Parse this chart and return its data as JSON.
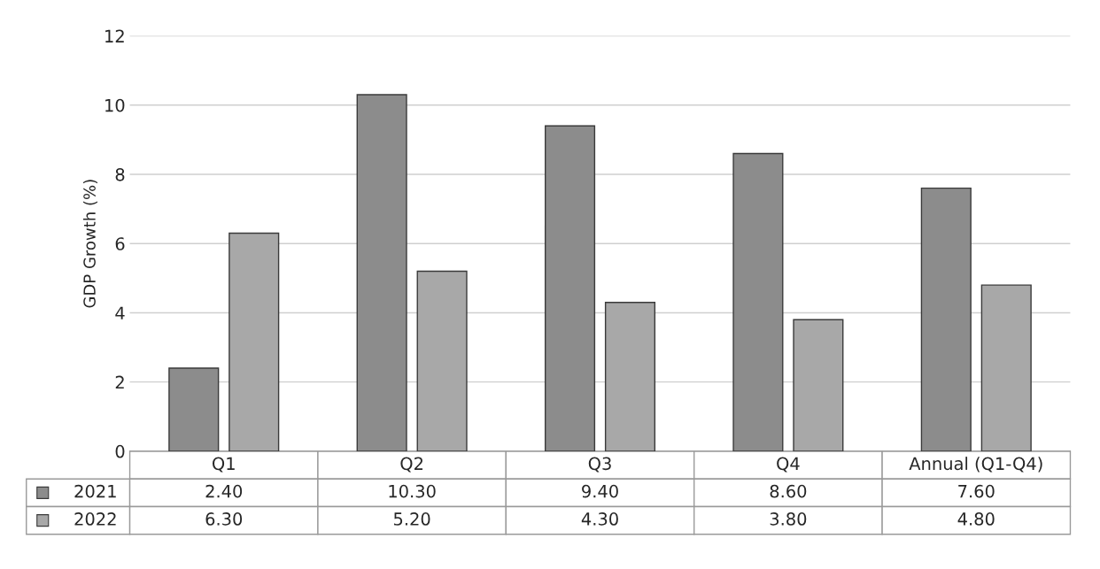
{
  "chart_data": {
    "type": "bar",
    "ylabel": "GDP Growth (%)",
    "categories": [
      "Q1",
      "Q2",
      "Q3",
      "Q4",
      "Annual (Q1-Q4)"
    ],
    "series": [
      {
        "name": "2021",
        "color": "#8c8c8c",
        "values": [
          2.4,
          10.3,
          9.4,
          8.6,
          7.6
        ],
        "value_labels": [
          "2.40",
          "10.30",
          "9.40",
          "8.60",
          "7.60"
        ]
      },
      {
        "name": "2022",
        "color": "#a8a8a8",
        "values": [
          6.3,
          5.2,
          4.3,
          3.8,
          4.8
        ],
        "value_labels": [
          "6.30",
          "5.20",
          "4.30",
          "3.80",
          "4.80"
        ]
      }
    ],
    "ylim": [
      0,
      12
    ],
    "yticks": [
      0,
      2,
      4,
      6,
      8,
      10,
      12
    ],
    "grid": "y",
    "legend": "bottom"
  }
}
